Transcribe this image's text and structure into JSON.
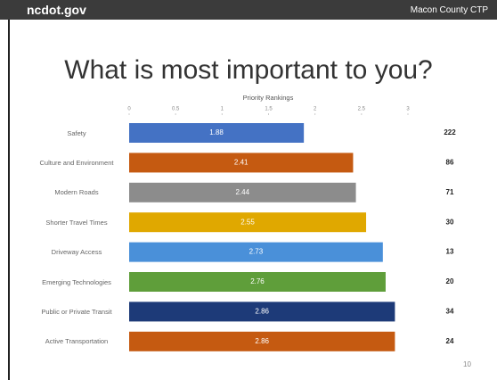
{
  "header": {
    "site": "ncdot.gov",
    "project": "Macon County CTP"
  },
  "slide": {
    "title": "What is most important to you?",
    "page_number": "10"
  },
  "chart_data": {
    "type": "bar",
    "orientation": "horizontal",
    "title": "Priority Rankings",
    "categories": [
      "Safety",
      "Culture and Environment",
      "Modern Roads",
      "Shorter Travel Times",
      "Driveway Access",
      "Emerging Technologies",
      "Public or Private Transit",
      "Active Transportation"
    ],
    "values": [
      1.88,
      2.41,
      2.44,
      2.55,
      2.73,
      2.76,
      2.86,
      2.86
    ],
    "colors": [
      "#4472c4",
      "#c55a11",
      "#8c8c8c",
      "#e0a800",
      "#4a90d9",
      "#5f9e3a",
      "#1d3a78",
      "#c55a11"
    ],
    "counts": [
      222,
      86,
      71,
      30,
      13,
      20,
      34,
      24
    ],
    "xlim": [
      0,
      3
    ],
    "xticks": [
      0,
      0.5,
      1,
      1.5,
      2,
      2.5,
      3
    ],
    "grid": false
  }
}
